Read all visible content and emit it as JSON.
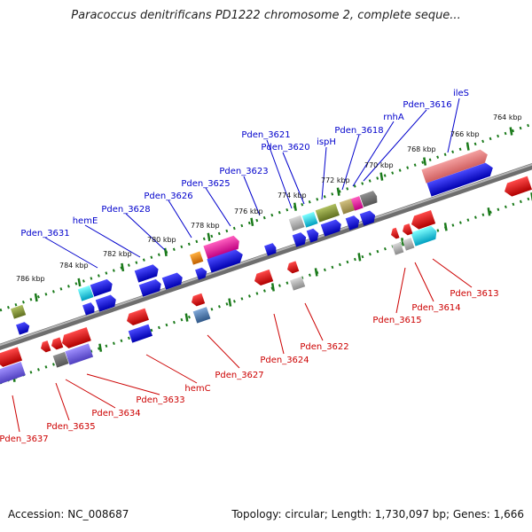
{
  "title": "Paracoccus denitrificans PD1222 chromosome 2, complete seque...",
  "footer": {
    "accession": "Accession: NC_008687",
    "topology": "Topology: circular; Length: 1,730,097 bp; Genes: 1,666"
  },
  "colors": {
    "backbone": "#7f7f7f",
    "tick": "#1a7a1a",
    "top_label": "#0000cc",
    "bottom_label": "#cc0000"
  },
  "kbp_labels": [
    "764 kbp",
    "766 kbp",
    "768 kbp",
    "770 kbp",
    "772 kbp",
    "774 kbp",
    "776 kbp",
    "778 kbp",
    "780 kbp",
    "782 kbp",
    "784 kbp",
    "786 kbp"
  ],
  "top_gene_labels": [
    "ileS",
    "Pden_3616",
    "rnhA",
    "Pden_3618",
    "ispH",
    "Pden_3620",
    "Pden_3621",
    "Pden_3623",
    "Pden_3625",
    "Pden_3626",
    "Pden_3628",
    "hemE",
    "Pden_3631"
  ],
  "bottom_gene_labels": [
    "Pden_3613",
    "Pden_3614",
    "Pden_3615",
    "Pden_3622",
    "Pden_3624",
    "Pden_3627",
    "hemC",
    "Pden_3633",
    "Pden_3634",
    "Pden_3635",
    "Pden_3637"
  ]
}
